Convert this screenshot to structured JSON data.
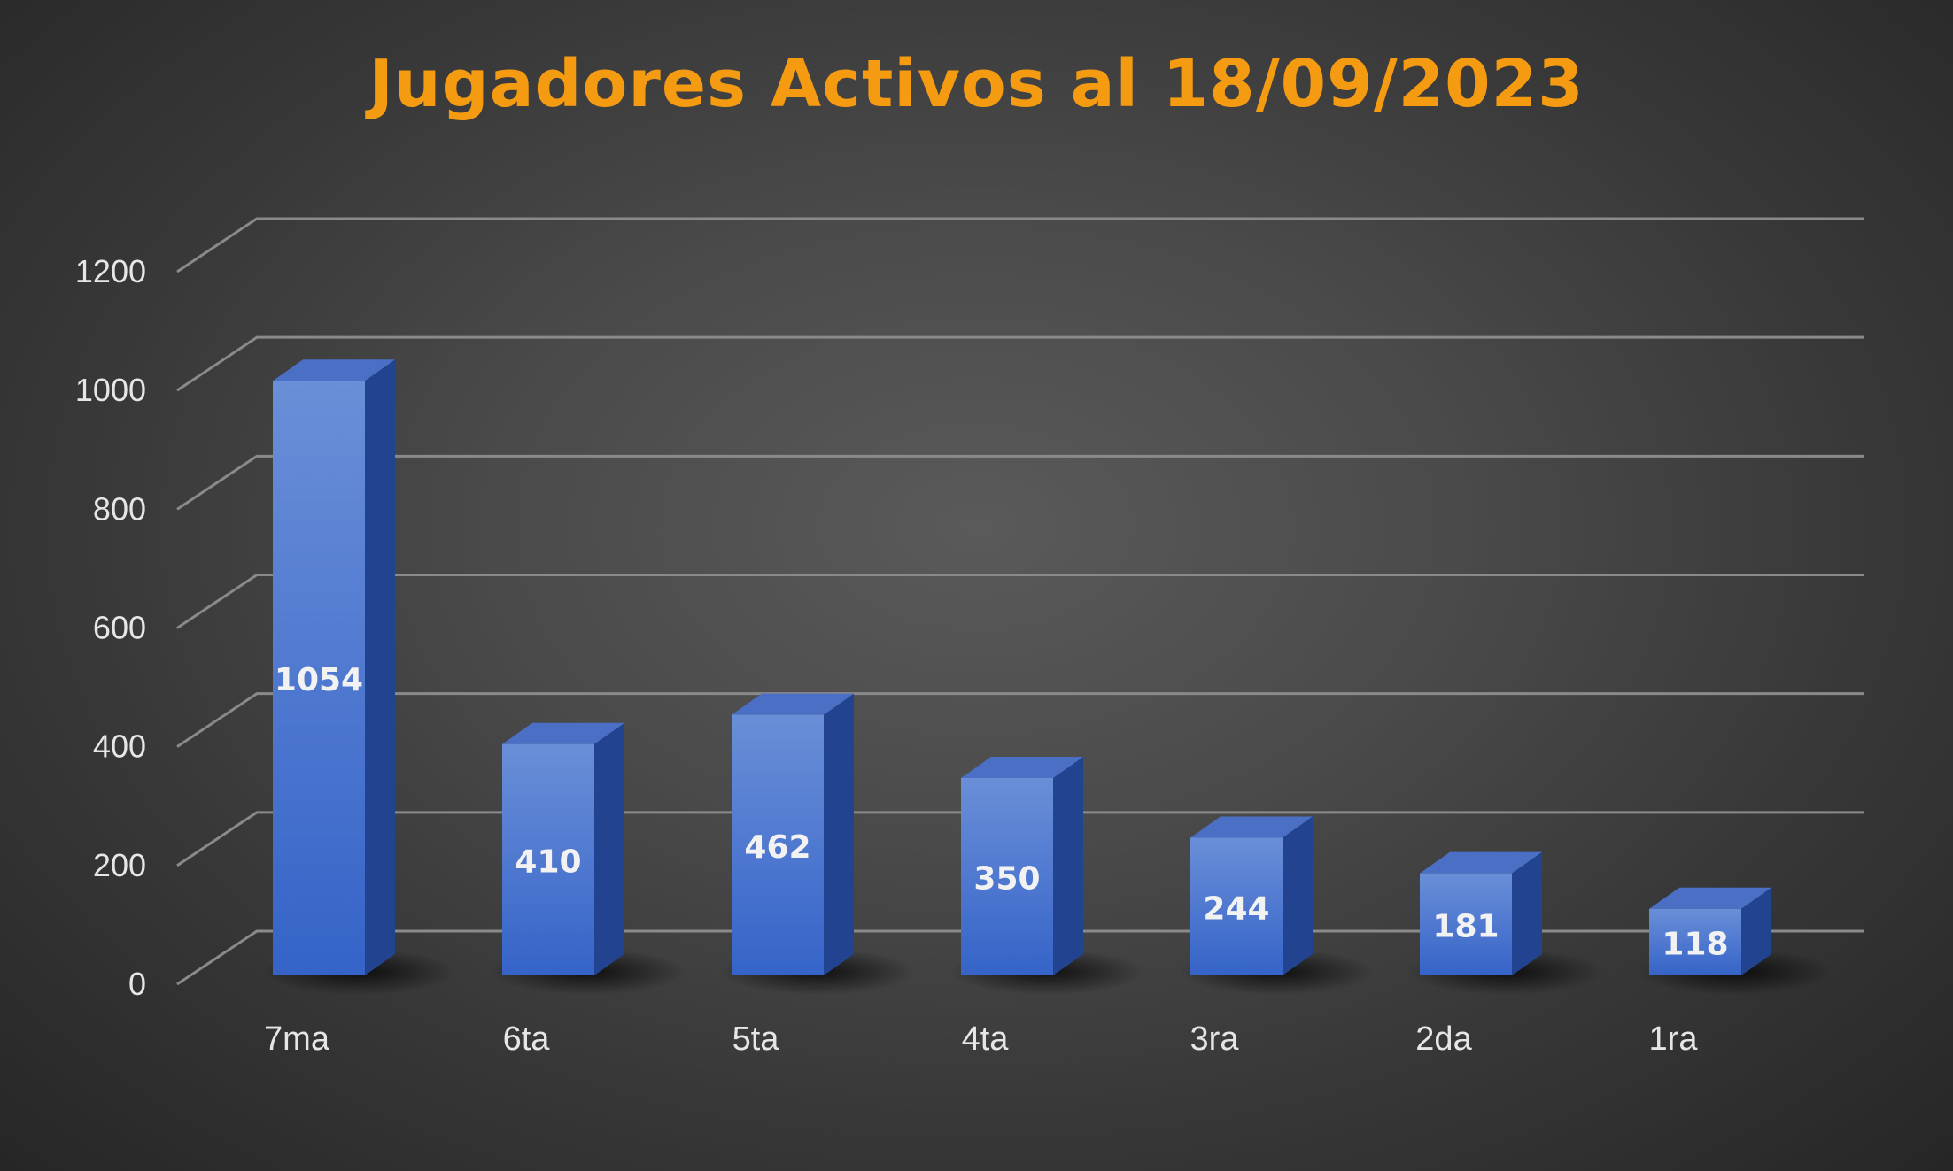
{
  "chart_data": {
    "type": "bar",
    "title": "Jugadores Activos al 18/09/2023",
    "categories": [
      "7ma",
      "6ta",
      "5ta",
      "4ta",
      "3ra",
      "2da",
      "1ra"
    ],
    "values": [
      1054,
      410,
      462,
      350,
      244,
      181,
      118
    ],
    "data_labels": [
      "1054",
      "410",
      "462",
      "350",
      "244",
      "181",
      "118"
    ],
    "yticks": [
      "0",
      "200",
      "400",
      "600",
      "800",
      "1000",
      "1200"
    ],
    "ylim": [
      0,
      1200
    ],
    "grid": true,
    "legend": "none",
    "style": "3d-column"
  },
  "colors": {
    "title": "#f59b12",
    "bar_front_top": "#6a8fd8",
    "bar_front_bottom": "#3563c8",
    "bar_side": "#22438f",
    "bar_top": "#4a6fc4",
    "grid": "#8a8a8a",
    "text": "#e6e6e6"
  }
}
